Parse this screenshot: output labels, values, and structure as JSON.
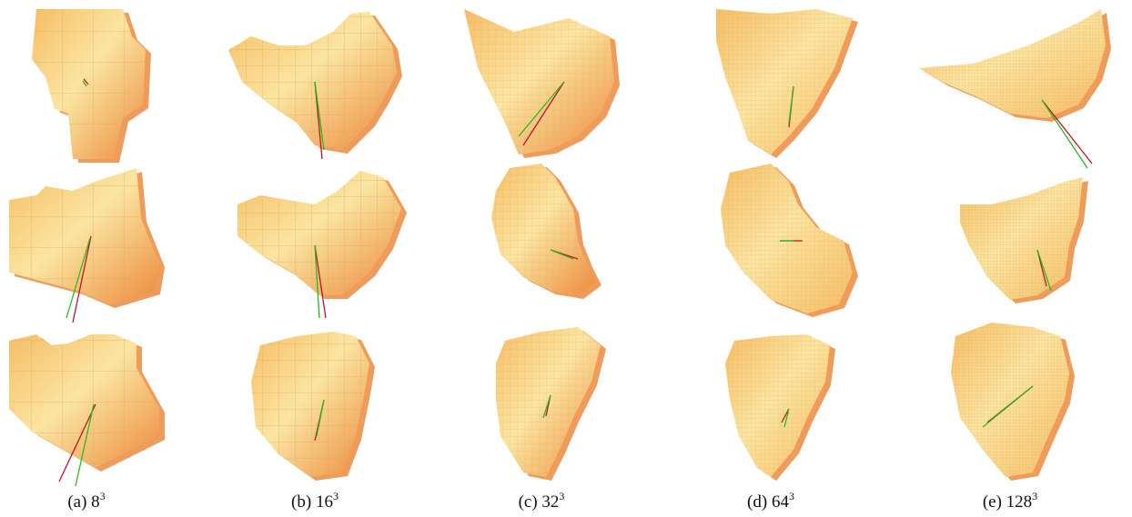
{
  "figure": {
    "columns": [
      {
        "label": "(a)",
        "base": "8",
        "exp": "3",
        "resolution": 8
      },
      {
        "label": "(b)",
        "base": "16",
        "exp": "3",
        "resolution": 16
      },
      {
        "label": "(c)",
        "base": "32",
        "exp": "3",
        "resolution": 32
      },
      {
        "label": "(d)",
        "base": "64",
        "exp": "3",
        "resolution": 64
      },
      {
        "label": "(e)",
        "base": "128",
        "exp": "3",
        "resolution": 128
      }
    ],
    "rows": 3,
    "colors": {
      "voxel_light": "#fbe5a1",
      "voxel_mid": "#f6bd64",
      "voxel_dark": "#ec8a3c",
      "voxel_edge": "#d9a35c",
      "vector_red": "#c8102e",
      "vector_green": "#1fbf1f"
    }
  }
}
